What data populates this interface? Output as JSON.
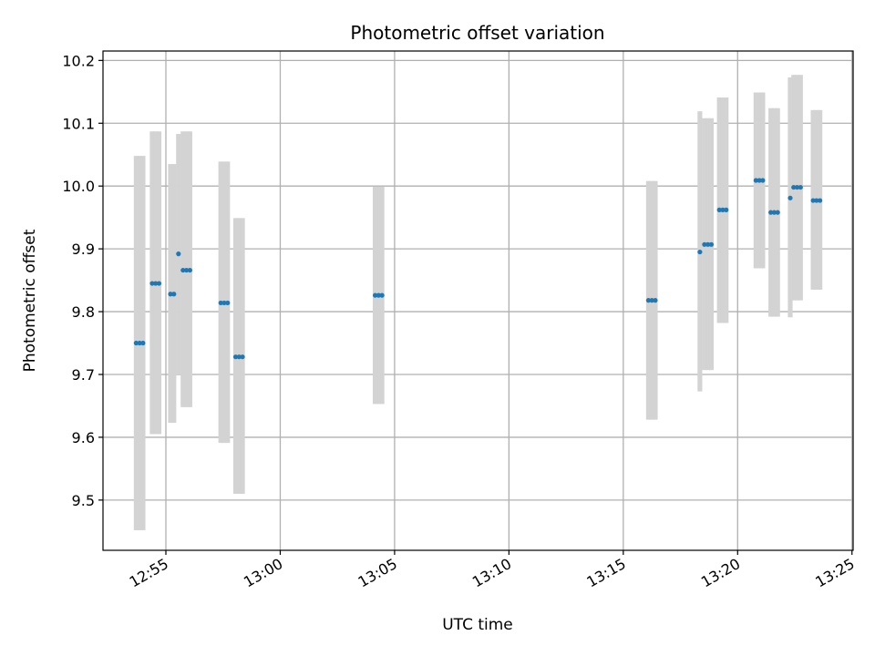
{
  "chart_data": {
    "type": "scatter",
    "title": "Photometric offset variation",
    "xlabel": "UTC time",
    "ylabel": "Photometric offset",
    "grid": true,
    "x_ticks": [
      "12:55",
      "13:00",
      "13:05",
      "13:10",
      "13:15",
      "13:20",
      "13:25"
    ],
    "x_tick_minutes": [
      0,
      5,
      10,
      15,
      20,
      25,
      30
    ],
    "xlim_minutes": [
      -2.75,
      30.05
    ],
    "y_ticks": [
      "9.5",
      "9.6",
      "9.7",
      "9.8",
      "9.9",
      "10.0",
      "10.1",
      "10.2"
    ],
    "y_tick_values": [
      9.5,
      9.6,
      9.7,
      9.8,
      9.9,
      10.0,
      10.1,
      10.2
    ],
    "ylim": [
      9.42,
      10.215
    ],
    "colors": {
      "point": "#1f77b4",
      "error_band": "#d3d3d3",
      "grid": "#b0b0b0"
    },
    "series": [
      {
        "points": [
          {
            "t": -1.3,
            "y": 9.75,
            "lo": 9.452,
            "hi": 10.048
          },
          {
            "t": -1.15,
            "y": 9.75,
            "lo": 9.452,
            "hi": 10.048
          },
          {
            "t": -1.0,
            "y": 9.75,
            "lo": 9.452,
            "hi": 10.048
          },
          {
            "t": -0.6,
            "y": 9.845,
            "lo": 9.605,
            "hi": 10.087
          },
          {
            "t": -0.45,
            "y": 9.845,
            "lo": 9.605,
            "hi": 10.087
          },
          {
            "t": -0.3,
            "y": 9.845,
            "lo": 9.605,
            "hi": 10.087
          },
          {
            "t": 0.2,
            "y": 9.828,
            "lo": 9.623,
            "hi": 10.035
          },
          {
            "t": 0.35,
            "y": 9.828,
            "lo": 9.623,
            "hi": 10.035
          },
          {
            "t": 0.55,
            "y": 9.892,
            "lo": 9.7,
            "hi": 10.083
          },
          {
            "t": 0.75,
            "y": 9.866,
            "lo": 9.648,
            "hi": 10.087
          },
          {
            "t": 0.9,
            "y": 9.866,
            "lo": 9.648,
            "hi": 10.087
          },
          {
            "t": 1.05,
            "y": 9.866,
            "lo": 9.648,
            "hi": 10.087
          },
          {
            "t": 2.4,
            "y": 9.814,
            "lo": 9.591,
            "hi": 10.039
          },
          {
            "t": 2.55,
            "y": 9.814,
            "lo": 9.591,
            "hi": 10.039
          },
          {
            "t": 2.7,
            "y": 9.814,
            "lo": 9.591,
            "hi": 10.039
          },
          {
            "t": 3.05,
            "y": 9.728,
            "lo": 9.51,
            "hi": 9.949
          },
          {
            "t": 3.2,
            "y": 9.728,
            "lo": 9.51,
            "hi": 9.949
          },
          {
            "t": 3.35,
            "y": 9.728,
            "lo": 9.51,
            "hi": 9.949
          },
          {
            "t": 9.15,
            "y": 9.826,
            "lo": 9.653,
            "hi": 9.999
          },
          {
            "t": 9.3,
            "y": 9.826,
            "lo": 9.653,
            "hi": 9.999
          },
          {
            "t": 9.45,
            "y": 9.826,
            "lo": 9.653,
            "hi": 9.999
          },
          {
            "t": 21.1,
            "y": 9.818,
            "lo": 9.628,
            "hi": 10.008
          },
          {
            "t": 21.25,
            "y": 9.818,
            "lo": 9.628,
            "hi": 10.008
          },
          {
            "t": 21.4,
            "y": 9.818,
            "lo": 9.628,
            "hi": 10.008
          },
          {
            "t": 23.35,
            "y": 9.895,
            "lo": 9.673,
            "hi": 10.119
          },
          {
            "t": 23.55,
            "y": 9.907,
            "lo": 9.707,
            "hi": 10.108
          },
          {
            "t": 23.7,
            "y": 9.907,
            "lo": 9.707,
            "hi": 10.108
          },
          {
            "t": 23.85,
            "y": 9.907,
            "lo": 9.707,
            "hi": 10.108
          },
          {
            "t": 24.2,
            "y": 9.962,
            "lo": 9.782,
            "hi": 10.141
          },
          {
            "t": 24.35,
            "y": 9.962,
            "lo": 9.782,
            "hi": 10.141
          },
          {
            "t": 24.5,
            "y": 9.962,
            "lo": 9.782,
            "hi": 10.141
          },
          {
            "t": 25.8,
            "y": 10.009,
            "lo": 9.869,
            "hi": 10.149
          },
          {
            "t": 25.95,
            "y": 10.009,
            "lo": 9.869,
            "hi": 10.149
          },
          {
            "t": 26.1,
            "y": 10.009,
            "lo": 9.869,
            "hi": 10.149
          },
          {
            "t": 26.45,
            "y": 9.958,
            "lo": 9.792,
            "hi": 10.124
          },
          {
            "t": 26.6,
            "y": 9.958,
            "lo": 9.792,
            "hi": 10.124
          },
          {
            "t": 26.75,
            "y": 9.958,
            "lo": 9.792,
            "hi": 10.124
          },
          {
            "t": 27.3,
            "y": 9.981,
            "lo": 9.791,
            "hi": 10.173
          },
          {
            "t": 27.45,
            "y": 9.998,
            "lo": 9.818,
            "hi": 10.177
          },
          {
            "t": 27.6,
            "y": 9.998,
            "lo": 9.818,
            "hi": 10.177
          },
          {
            "t": 27.75,
            "y": 9.998,
            "lo": 9.818,
            "hi": 10.177
          },
          {
            "t": 28.3,
            "y": 9.977,
            "lo": 9.835,
            "hi": 10.121
          },
          {
            "t": 28.45,
            "y": 9.977,
            "lo": 9.835,
            "hi": 10.121
          },
          {
            "t": 28.6,
            "y": 9.977,
            "lo": 9.835,
            "hi": 10.121
          }
        ]
      }
    ]
  }
}
